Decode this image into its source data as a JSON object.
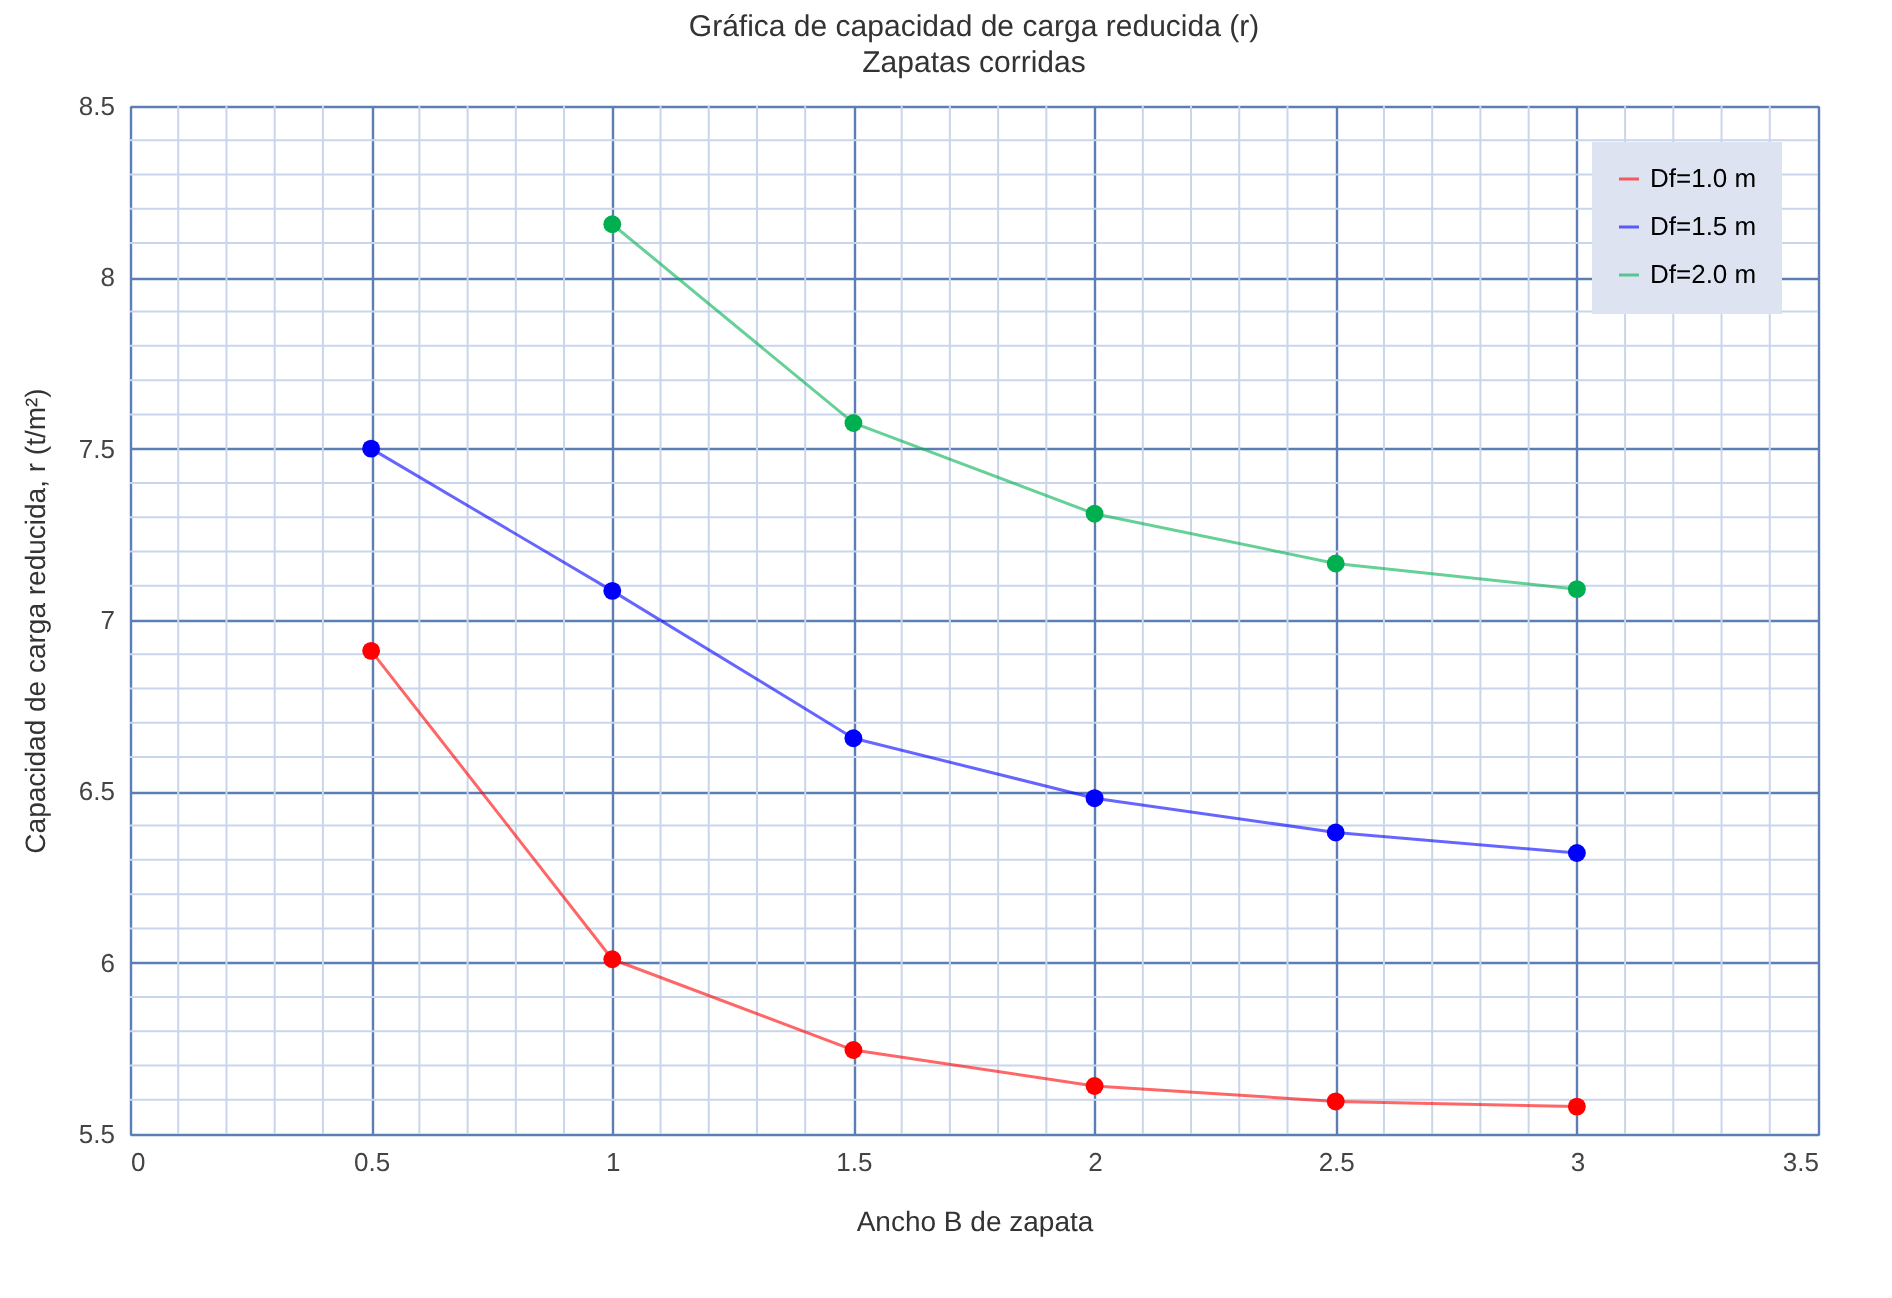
{
  "chart_data": {
    "type": "line",
    "title": "Gráfica de capacidad de carga reducida (r)",
    "subtitle": "Zapatas corridas",
    "xlabel": "Ancho B de zapata",
    "ylabel": "Capacidad de carga reducida,  r  (t/m²)",
    "x": [
      0.5,
      1,
      1.5,
      2,
      2.5,
      3
    ],
    "series": [
      {
        "name": "Df=1.0 m",
        "color": "#ff0000",
        "values": [
          6.91,
          6.01,
          5.745,
          5.64,
          5.595,
          5.58
        ]
      },
      {
        "name": "Df=1.5 m",
        "color": "#0000ff",
        "values": [
          7.5,
          7.085,
          6.655,
          6.48,
          6.38,
          6.32
        ]
      },
      {
        "name": "Df=2.0 m",
        "color": "#00b050",
        "values": [
          null,
          8.155,
          7.575,
          7.31,
          7.165,
          7.09
        ]
      }
    ],
    "xlim": [
      0,
      3.5
    ],
    "xticks": [
      0,
      0.5,
      1,
      1.5,
      2,
      2.5,
      3,
      3.5
    ],
    "ylim": [
      5.5,
      8.5
    ],
    "yticks": [
      5.5,
      6,
      6.5,
      7,
      7.5,
      8,
      8.5
    ],
    "grid": true,
    "legend": "top right",
    "marker": "circle",
    "line_style": "solid"
  }
}
